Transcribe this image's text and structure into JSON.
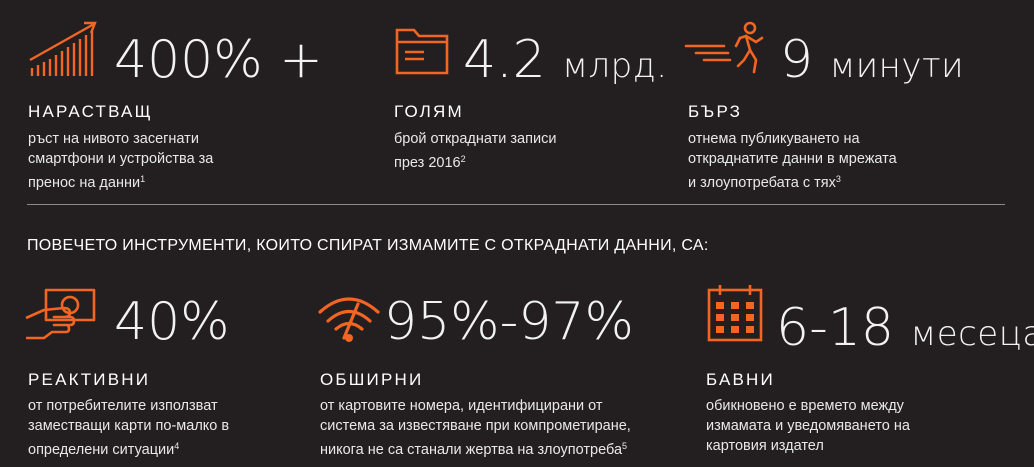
{
  "colors": {
    "background": "#231f20",
    "accent": "#f26522",
    "text": "#ffffff"
  },
  "top_stats": [
    {
      "icon": "growth-bar-chart-icon",
      "value": "400% +",
      "unit": "",
      "label": "НАРАСТВАЩ",
      "desc": [
        "ръст на нивото засегнати",
        "смартфони и устройства за",
        "пренос на данни"
      ],
      "note": "1"
    },
    {
      "icon": "folder-icon",
      "value": "4.2",
      "unit": "млрд.",
      "label": "ГОЛЯМ",
      "desc": [
        "брой откраднати записи",
        "през 2016"
      ],
      "note": "2"
    },
    {
      "icon": "running-person-icon",
      "value": "9",
      "unit": "минути",
      "label": "БЪРЗ",
      "desc": [
        "отнема публикуването на",
        "откраднатите данни в мрежата",
        "и злоупотребата с тях"
      ],
      "note": "3"
    }
  ],
  "section_heading": "ПОВЕЧЕТО ИНСТРУМЕНТИ, КОИТО СПИРАТ ИЗМАМИТЕ С ОТКРАДНАТИ ДАННИ, СА:",
  "bottom_stats": [
    {
      "icon": "hand-with-banknote-icon",
      "value": "40%",
      "unit": "",
      "label": "РЕАКТИВНИ",
      "desc": [
        "от потребителите използват",
        "заместващи карти по-малко в",
        "определени ситуации"
      ],
      "note": "4"
    },
    {
      "icon": "wifi-signal-icon",
      "value": "95%-97%",
      "unit": "",
      "label": "ОБШИРНИ",
      "desc": [
        "от картовите номера, идентифицирани от",
        "система за известяване при компрометиране,",
        "никога не са станали жертва на злоупотреба"
      ],
      "note": "5"
    },
    {
      "icon": "calendar-icon",
      "value": "6-18",
      "unit": "месеца",
      "label": "БАВНИ",
      "desc": [
        "обикновено е времето между",
        "измамата и уведомяването на",
        "картовия издател"
      ],
      "note": ""
    }
  ]
}
